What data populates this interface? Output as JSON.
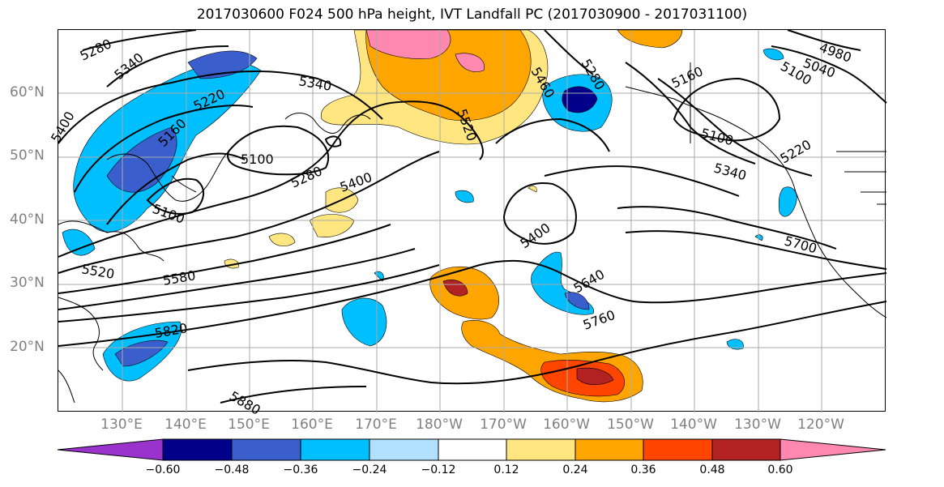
{
  "title": "2017030600 F024 500 hPa height, IVT Landfall PC (2017030900 - 2017031100)",
  "lat_labels": [
    "60°N",
    "50°N",
    "40°N",
    "30°N",
    "20°N"
  ],
  "lon_labels": [
    "130°E",
    "140°E",
    "150°E",
    "160°E",
    "170°E",
    "180°W",
    "170°W",
    "160°W",
    "150°W",
    "140°W",
    "130°W",
    "120°W"
  ],
  "contour_labels": [
    "5280",
    "5340",
    "5400",
    "5220",
    "5160",
    "5100",
    "5100",
    "5280",
    "5400",
    "5340",
    "5520",
    "5520",
    "5580",
    "5820",
    "5880",
    "5400",
    "5640",
    "5760",
    "5700",
    "5340",
    "5220",
    "5100",
    "5160",
    "5040",
    "4980",
    "5100",
    "5280",
    "5460"
  ],
  "colorbar": {
    "ticks": [
      "−0.60",
      "−0.48",
      "−0.36",
      "−0.24",
      "−0.12",
      "0.12",
      "0.24",
      "0.36",
      "0.48",
      "0.60"
    ],
    "colors": [
      "#9933cc",
      "#00008b",
      "#3a5fcd",
      "#00bfff",
      "#b2e0ff",
      "#ffffff",
      "#ffe680",
      "#ffa500",
      "#ff4500",
      "#b22222",
      "#ff88b0"
    ]
  }
}
